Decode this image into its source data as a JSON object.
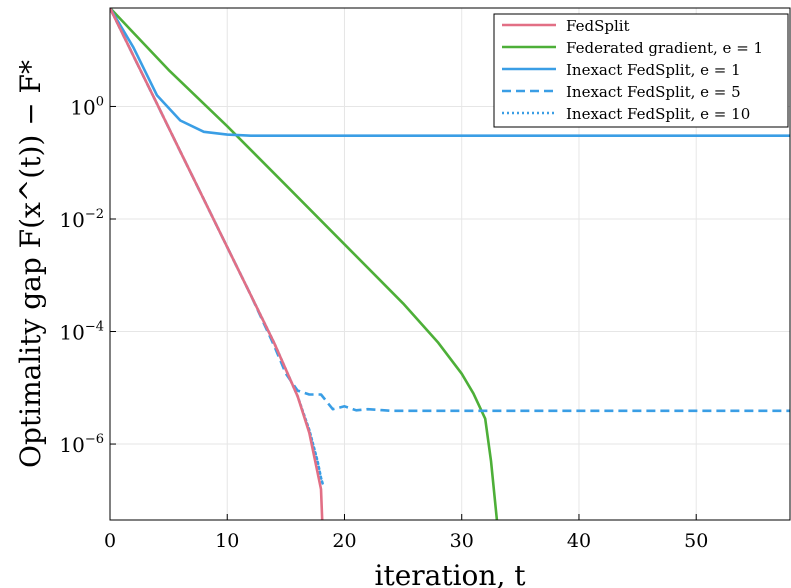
{
  "chart_data": {
    "type": "line",
    "xlabel": "iteration, t",
    "ylabel": "Optimality gap F(x^(t)) − F*",
    "xlim": [
      0,
      58
    ],
    "ylim_log10": [
      -7.35,
      1.75
    ],
    "yscale": "log",
    "grid": true,
    "legend_position": "top-right",
    "x_ticks": [
      0,
      10,
      20,
      30,
      40,
      50
    ],
    "y_ticks": [
      {
        "exp": 0,
        "label_base": "10",
        "label_exp": "0"
      },
      {
        "exp": -2,
        "label_base": "10",
        "label_exp": "−2"
      },
      {
        "exp": -4,
        "label_base": "10",
        "label_exp": "−4"
      },
      {
        "exp": -6,
        "label_base": "10",
        "label_exp": "−6"
      }
    ],
    "series": [
      {
        "name": "FedSplit",
        "color": "#e26f85",
        "style": "solid",
        "points": [
          [
            0,
            1.75
          ],
          [
            2,
            0.9
          ],
          [
            4,
            0.05
          ],
          [
            6,
            -0.8
          ],
          [
            8,
            -1.65
          ],
          [
            10,
            -2.5
          ],
          [
            12,
            -3.35
          ],
          [
            14,
            -4.2
          ],
          [
            16,
            -5.15
          ],
          [
            17,
            -5.8
          ],
          [
            17.6,
            -6.4
          ],
          [
            18,
            -6.8
          ],
          [
            18.1,
            -7.35
          ]
        ]
      },
      {
        "name": "Federated gradient, e = 1",
        "color": "#4daf38",
        "style": "solid",
        "points": [
          [
            0,
            1.75
          ],
          [
            5,
            0.65
          ],
          [
            10,
            -0.35
          ],
          [
            15,
            -1.4
          ],
          [
            20,
            -2.45
          ],
          [
            25,
            -3.5
          ],
          [
            28,
            -4.2
          ],
          [
            30,
            -4.75
          ],
          [
            31,
            -5.1
          ],
          [
            32,
            -5.55
          ],
          [
            32.5,
            -6.3
          ],
          [
            33,
            -7.35
          ]
        ]
      },
      {
        "name": "Inexact FedSplit, e = 1",
        "color": "#3a9ee5",
        "style": "solid",
        "points": [
          [
            0,
            1.75
          ],
          [
            2,
            1.05
          ],
          [
            4,
            0.2
          ],
          [
            6,
            -0.25
          ],
          [
            8,
            -0.45
          ],
          [
            10,
            -0.5
          ],
          [
            12,
            -0.52
          ],
          [
            20,
            -0.52
          ],
          [
            58,
            -0.52
          ]
        ]
      },
      {
        "name": "Inexact FedSplit, e = 5",
        "color": "#3a9ee5",
        "style": "dashed",
        "points": [
          [
            0,
            1.75
          ],
          [
            2,
            0.9
          ],
          [
            4,
            0.05
          ],
          [
            6,
            -0.8
          ],
          [
            8,
            -1.65
          ],
          [
            10,
            -2.5
          ],
          [
            12,
            -3.35
          ],
          [
            14,
            -4.25
          ],
          [
            15,
            -4.75
          ],
          [
            16,
            -5.05
          ],
          [
            17,
            -5.12
          ],
          [
            18,
            -5.12
          ],
          [
            19,
            -5.38
          ],
          [
            20,
            -5.33
          ],
          [
            21,
            -5.4
          ],
          [
            22,
            -5.38
          ],
          [
            24,
            -5.41
          ],
          [
            58,
            -5.41
          ]
        ]
      },
      {
        "name": "Inexact FedSplit, e = 10",
        "color": "#3a9ee5",
        "style": "dotted",
        "points": [
          [
            0,
            1.75
          ],
          [
            2,
            0.9
          ],
          [
            4,
            0.05
          ],
          [
            6,
            -0.8
          ],
          [
            8,
            -1.65
          ],
          [
            10,
            -2.5
          ],
          [
            12,
            -3.35
          ],
          [
            14,
            -4.2
          ],
          [
            16,
            -5.15
          ],
          [
            17,
            -5.75
          ],
          [
            17.7,
            -6.3
          ],
          [
            18,
            -6.6
          ],
          [
            18.2,
            -6.75
          ]
        ]
      }
    ]
  }
}
